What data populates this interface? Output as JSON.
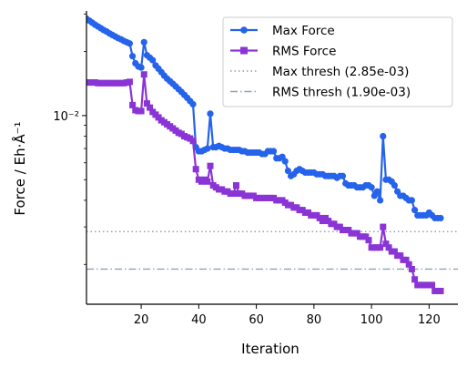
{
  "chart_data": {
    "type": "line",
    "xlabel": "Iteration",
    "ylabel": "Force / Eh·Å⁻¹",
    "xlim": [
      1,
      130
    ],
    "ylim": [
      0.0013,
      0.031
    ],
    "yscale": "log",
    "x_ticks": [
      20,
      40,
      60,
      80,
      100,
      120
    ],
    "y_major_ticks": [
      {
        "value": 0.01,
        "label": "10⁻²"
      }
    ],
    "grid": false,
    "legend_position": "top-right",
    "series": [
      {
        "name": "Max Force",
        "color": "#2563eb",
        "marker": "circle",
        "x": [
          1,
          2,
          3,
          4,
          5,
          6,
          7,
          8,
          9,
          10,
          11,
          12,
          13,
          14,
          15,
          16,
          17,
          18,
          19,
          20,
          21,
          22,
          23,
          24,
          25,
          26,
          27,
          28,
          29,
          30,
          31,
          32,
          33,
          34,
          35,
          36,
          37,
          38,
          39,
          40,
          41,
          42,
          43,
          44,
          45,
          46,
          47,
          48,
          49,
          50,
          51,
          52,
          53,
          54,
          55,
          56,
          57,
          58,
          59,
          60,
          61,
          62,
          63,
          64,
          65,
          66,
          67,
          68,
          69,
          70,
          71,
          72,
          73,
          74,
          75,
          76,
          77,
          78,
          79,
          80,
          81,
          82,
          83,
          84,
          85,
          86,
          87,
          88,
          89,
          90,
          91,
          92,
          93,
          94,
          95,
          96,
          97,
          98,
          99,
          100,
          101,
          102,
          103,
          104,
          105,
          106,
          107,
          108,
          109,
          110,
          111,
          112,
          113,
          114,
          115,
          116,
          117,
          118,
          119,
          120,
          121,
          122,
          123,
          124
        ],
        "values": [
          0.0285,
          0.0279,
          0.0273,
          0.0267,
          0.0262,
          0.0257,
          0.0252,
          0.0248,
          0.0243,
          0.0239,
          0.0235,
          0.0231,
          0.0228,
          0.0224,
          0.0221,
          0.0218,
          0.019,
          0.0176,
          0.017,
          0.0168,
          0.0221,
          0.0192,
          0.0187,
          0.0182,
          0.0172,
          0.0166,
          0.016,
          0.0154,
          0.0149,
          0.0145,
          0.0141,
          0.0137,
          0.0133,
          0.0129,
          0.0125,
          0.0121,
          0.0117,
          0.0113,
          0.0071,
          0.0068,
          0.0068,
          0.0069,
          0.007,
          0.0102,
          0.0071,
          0.0071,
          0.0072,
          0.0071,
          0.007,
          0.007,
          0.0069,
          0.0069,
          0.0069,
          0.0069,
          0.0068,
          0.0068,
          0.0067,
          0.0067,
          0.0067,
          0.0067,
          0.0067,
          0.0066,
          0.0066,
          0.0068,
          0.0068,
          0.0068,
          0.0063,
          0.0063,
          0.0064,
          0.0061,
          0.0055,
          0.0052,
          0.0053,
          0.0055,
          0.0056,
          0.0055,
          0.0054,
          0.0054,
          0.0054,
          0.0054,
          0.0053,
          0.0053,
          0.0053,
          0.0052,
          0.0052,
          0.0052,
          0.0052,
          0.0051,
          0.0052,
          0.0052,
          0.0048,
          0.0047,
          0.0047,
          0.0047,
          0.0046,
          0.0046,
          0.0046,
          0.0047,
          0.0047,
          0.0046,
          0.0042,
          0.0044,
          0.004,
          0.008,
          0.005,
          0.005,
          0.0049,
          0.0047,
          0.0044,
          0.0042,
          0.0042,
          0.0041,
          0.004,
          0.004,
          0.0036,
          0.0034,
          0.0034,
          0.0034,
          0.0034,
          0.0035,
          0.0034,
          0.0033,
          0.0033,
          0.0033
        ]
      },
      {
        "name": "RMS Force",
        "color": "#8b34d6",
        "marker": "square",
        "x": [
          1,
          2,
          3,
          4,
          5,
          6,
          7,
          8,
          9,
          10,
          11,
          12,
          13,
          14,
          15,
          16,
          17,
          18,
          19,
          20,
          21,
          22,
          23,
          24,
          25,
          26,
          27,
          28,
          29,
          30,
          31,
          32,
          33,
          34,
          35,
          36,
          37,
          38,
          39,
          40,
          41,
          42,
          43,
          44,
          45,
          46,
          47,
          48,
          49,
          50,
          51,
          52,
          53,
          54,
          55,
          56,
          57,
          58,
          59,
          60,
          61,
          62,
          63,
          64,
          65,
          66,
          67,
          68,
          69,
          70,
          71,
          72,
          73,
          74,
          75,
          76,
          77,
          78,
          79,
          80,
          81,
          82,
          83,
          84,
          85,
          86,
          87,
          88,
          89,
          90,
          91,
          92,
          93,
          94,
          95,
          96,
          97,
          98,
          99,
          100,
          101,
          102,
          103,
          104,
          105,
          106,
          107,
          108,
          109,
          110,
          111,
          112,
          113,
          114,
          115,
          116,
          117,
          118,
          119,
          120,
          121,
          122,
          123,
          124
        ],
        "values": [
          0.0143,
          0.0143,
          0.0143,
          0.0143,
          0.0142,
          0.0142,
          0.0142,
          0.0142,
          0.0142,
          0.0142,
          0.0142,
          0.0142,
          0.0142,
          0.0142,
          0.0143,
          0.0144,
          0.0112,
          0.0106,
          0.0105,
          0.0105,
          0.0156,
          0.0114,
          0.0109,
          0.0104,
          0.0101,
          0.0098,
          0.0095,
          0.0093,
          0.0091,
          0.0089,
          0.0087,
          0.0085,
          0.0083,
          0.0082,
          0.008,
          0.0079,
          0.0078,
          0.0076,
          0.0056,
          0.005,
          0.0049,
          0.005,
          0.0049,
          0.0058,
          0.0047,
          0.0046,
          0.0045,
          0.0045,
          0.0044,
          0.0044,
          0.0043,
          0.0043,
          0.0047,
          0.0043,
          0.0043,
          0.0042,
          0.0042,
          0.0042,
          0.0042,
          0.0041,
          0.0041,
          0.0041,
          0.0041,
          0.0041,
          0.0041,
          0.0041,
          0.004,
          0.004,
          0.004,
          0.0039,
          0.0038,
          0.0038,
          0.0037,
          0.0037,
          0.0036,
          0.0036,
          0.0035,
          0.0035,
          0.0034,
          0.0034,
          0.0034,
          0.0033,
          0.0032,
          0.0033,
          0.0032,
          0.0031,
          0.0031,
          0.003,
          0.003,
          0.0029,
          0.0029,
          0.0029,
          0.0028,
          0.0028,
          0.0028,
          0.0027,
          0.0027,
          0.0027,
          0.0026,
          0.0024,
          0.0024,
          0.0024,
          0.0024,
          0.003,
          0.0025,
          0.0024,
          0.0023,
          0.0023,
          0.0022,
          0.0022,
          0.0021,
          0.0021,
          0.002,
          0.0019,
          0.0017,
          0.0016,
          0.0016,
          0.0016,
          0.0016,
          0.0016,
          0.0016,
          0.0015,
          0.0015,
          0.0015
        ]
      }
    ],
    "thresholds": [
      {
        "name": "Max thresh (2.85e-03)",
        "value": 0.00285,
        "color": "#8f9aa8",
        "style": "dotted"
      },
      {
        "name": "RMS thresh (1.90e-03)",
        "value": 0.0019,
        "color": "#8fa3b8",
        "style": "dashdot"
      }
    ]
  }
}
